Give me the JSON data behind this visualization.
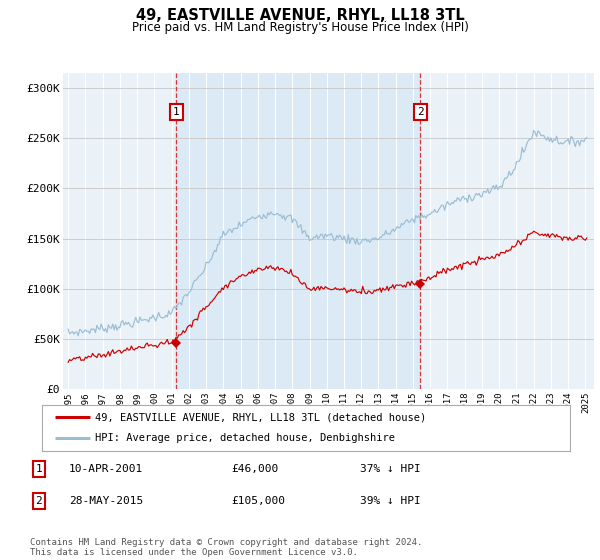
{
  "title": "49, EASTVILLE AVENUE, RHYL, LL18 3TL",
  "subtitle": "Price paid vs. HM Land Registry's House Price Index (HPI)",
  "yticks": [
    0,
    50000,
    100000,
    150000,
    200000,
    250000,
    300000
  ],
  "ytick_labels": [
    "£0",
    "£50K",
    "£100K",
    "£150K",
    "£200K",
    "£250K",
    "£300K"
  ],
  "xlim_start": 1994.7,
  "xlim_end": 2025.5,
  "ylim_min": 0,
  "ylim_max": 315000,
  "hpi_color": "#9bbdd4",
  "price_color": "#cc0000",
  "sale1_date_num": 2001.27,
  "sale1_price": 46000,
  "sale2_date_num": 2015.42,
  "sale2_price": 105000,
  "shading_color": "#dbeaf5",
  "plot_bg_color": "#eaf1f7",
  "grid_color": "#cccccc",
  "background_color": "#ffffff",
  "legend_price_label": "49, EASTVILLE AVENUE, RHYL, LL18 3TL (detached house)",
  "legend_hpi_label": "HPI: Average price, detached house, Denbighshire",
  "note1_idx": "1",
  "note1_date": "10-APR-2001",
  "note1_price": "£46,000",
  "note1_pct": "37% ↓ HPI",
  "note2_idx": "2",
  "note2_date": "28-MAY-2015",
  "note2_price": "£105,000",
  "note2_pct": "39% ↓ HPI",
  "footer": "Contains HM Land Registry data © Crown copyright and database right 2024.\nThis data is licensed under the Open Government Licence v3.0."
}
